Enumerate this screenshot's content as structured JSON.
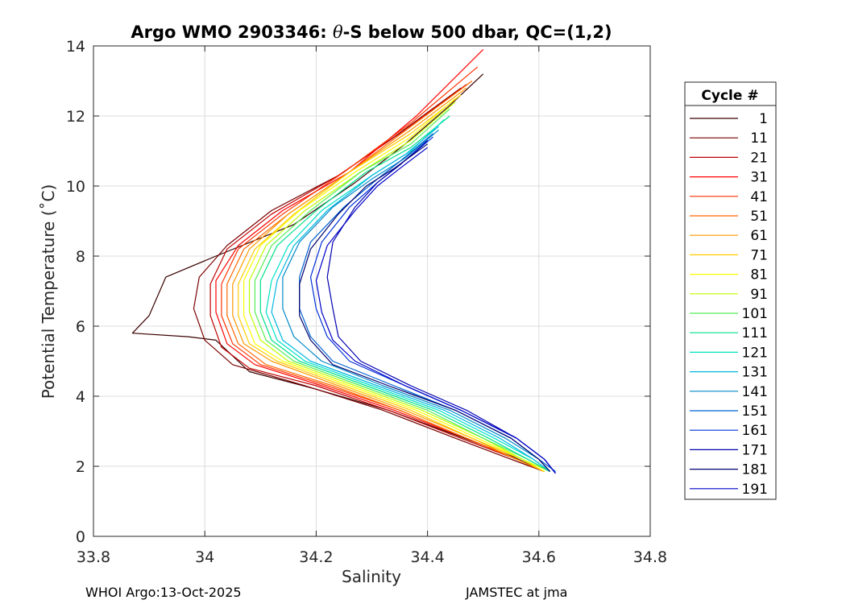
{
  "footer": {
    "left": "WHOI Argo:13-Oct-2025",
    "right": "JAMSTEC at jma"
  },
  "chart_data": {
    "type": "line",
    "title_prefix": "Argo WMO 2903346: ",
    "title_theta": "θ",
    "title_suffix": "-S below 500 dbar,  QC=(1,2)",
    "xlabel": "Salinity",
    "ylabel": "Potential Temperature (˚C)",
    "xlim": [
      33.8,
      34.8
    ],
    "ylim": [
      0,
      14
    ],
    "xticks": [
      33.8,
      34,
      34.2,
      34.4,
      34.6,
      34.8
    ],
    "xtick_labels": [
      "33.8",
      "34",
      "34.2",
      "34.4",
      "34.6",
      "34.8"
    ],
    "yticks": [
      0,
      2,
      4,
      6,
      8,
      10,
      12,
      14
    ],
    "ytick_labels": [
      "0",
      "2",
      "4",
      "6",
      "8",
      "10",
      "12",
      "14"
    ],
    "grid": true,
    "legend_title": "Cycle #",
    "legend_position": "right",
    "series": [
      {
        "name": "1",
        "color": "#3a0000",
        "points": [
          [
            34.5,
            13.2
          ],
          [
            34.44,
            12.3
          ],
          [
            34.36,
            11.2
          ],
          [
            34.27,
            10.1
          ],
          [
            34.16,
            8.9
          ],
          [
            34.02,
            8.0
          ],
          [
            33.93,
            7.4
          ],
          [
            33.9,
            6.3
          ],
          [
            33.87,
            5.8
          ],
          [
            33.97,
            5.7
          ],
          [
            34.02,
            5.6
          ],
          [
            34.08,
            4.7
          ],
          [
            34.2,
            4.2
          ],
          [
            34.33,
            3.6
          ],
          [
            34.45,
            2.9
          ],
          [
            34.55,
            2.3
          ],
          [
            34.61,
            1.85
          ]
        ]
      },
      {
        "name": "11",
        "color": "#7a0000",
        "points": [
          [
            34.46,
            12.8
          ],
          [
            34.34,
            11.4
          ],
          [
            34.24,
            10.3
          ],
          [
            34.12,
            9.3
          ],
          [
            34.04,
            8.3
          ],
          [
            33.99,
            7.4
          ],
          [
            33.98,
            6.5
          ],
          [
            34.0,
            5.6
          ],
          [
            34.05,
            4.9
          ],
          [
            34.18,
            4.3
          ],
          [
            34.32,
            3.6
          ],
          [
            34.45,
            2.8
          ],
          [
            34.55,
            2.2
          ],
          [
            34.61,
            1.85
          ]
        ]
      },
      {
        "name": "21",
        "color": "#c00000",
        "points": [
          [
            34.47,
            12.9
          ],
          [
            34.35,
            11.5
          ],
          [
            34.24,
            10.3
          ],
          [
            34.12,
            9.2
          ],
          [
            34.04,
            8.2
          ],
          [
            34.01,
            7.2
          ],
          [
            34.01,
            6.3
          ],
          [
            34.03,
            5.4
          ],
          [
            34.08,
            4.8
          ],
          [
            34.2,
            4.3
          ],
          [
            34.33,
            3.6
          ],
          [
            34.46,
            2.8
          ],
          [
            34.56,
            2.2
          ],
          [
            34.61,
            1.85
          ]
        ]
      },
      {
        "name": "31",
        "color": "#ff0000",
        "points": [
          [
            34.5,
            13.9
          ],
          [
            34.38,
            12.0
          ],
          [
            34.26,
            10.4
          ],
          [
            34.14,
            9.3
          ],
          [
            34.06,
            8.3
          ],
          [
            34.02,
            7.3
          ],
          [
            34.02,
            6.4
          ],
          [
            34.04,
            5.5
          ],
          [
            34.09,
            4.9
          ],
          [
            34.21,
            4.3
          ],
          [
            34.34,
            3.6
          ],
          [
            34.47,
            2.8
          ],
          [
            34.56,
            2.2
          ],
          [
            34.61,
            1.85
          ]
        ]
      },
      {
        "name": "41",
        "color": "#ff3300",
        "points": [
          [
            34.49,
            13.4
          ],
          [
            34.37,
            11.8
          ],
          [
            34.25,
            10.4
          ],
          [
            34.14,
            9.2
          ],
          [
            34.06,
            8.2
          ],
          [
            34.03,
            7.2
          ],
          [
            34.03,
            6.3
          ],
          [
            34.05,
            5.5
          ],
          [
            34.1,
            4.9
          ],
          [
            34.22,
            4.3
          ],
          [
            34.35,
            3.6
          ],
          [
            34.47,
            2.8
          ],
          [
            34.56,
            2.2
          ],
          [
            34.61,
            1.85
          ]
        ]
      },
      {
        "name": "51",
        "color": "#ff6600",
        "points": [
          [
            34.48,
            13.0
          ],
          [
            34.37,
            11.7
          ],
          [
            34.26,
            10.4
          ],
          [
            34.15,
            9.2
          ],
          [
            34.07,
            8.2
          ],
          [
            34.04,
            7.2
          ],
          [
            34.04,
            6.3
          ],
          [
            34.06,
            5.5
          ],
          [
            34.11,
            4.9
          ],
          [
            34.23,
            4.3
          ],
          [
            34.35,
            3.6
          ],
          [
            34.47,
            2.8
          ],
          [
            34.56,
            2.2
          ],
          [
            34.61,
            1.85
          ]
        ]
      },
      {
        "name": "61",
        "color": "#ff9900",
        "points": [
          [
            34.47,
            12.8
          ],
          [
            34.37,
            11.6
          ],
          [
            34.26,
            10.4
          ],
          [
            34.15,
            9.2
          ],
          [
            34.08,
            8.2
          ],
          [
            34.05,
            7.2
          ],
          [
            34.05,
            6.3
          ],
          [
            34.07,
            5.5
          ],
          [
            34.12,
            5.0
          ],
          [
            34.24,
            4.3
          ],
          [
            34.36,
            3.6
          ],
          [
            34.48,
            2.8
          ],
          [
            34.56,
            2.2
          ],
          [
            34.61,
            1.85
          ]
        ]
      },
      {
        "name": "71",
        "color": "#ffcc00",
        "points": [
          [
            34.46,
            12.6
          ],
          [
            34.37,
            11.5
          ],
          [
            34.26,
            10.4
          ],
          [
            34.16,
            9.2
          ],
          [
            34.09,
            8.2
          ],
          [
            34.06,
            7.2
          ],
          [
            34.06,
            6.3
          ],
          [
            34.08,
            5.5
          ],
          [
            34.13,
            5.0
          ],
          [
            34.25,
            4.3
          ],
          [
            34.37,
            3.6
          ],
          [
            34.48,
            2.8
          ],
          [
            34.57,
            2.2
          ],
          [
            34.61,
            1.85
          ]
        ]
      },
      {
        "name": "81",
        "color": "#ffff00",
        "points": [
          [
            34.45,
            12.5
          ],
          [
            34.37,
            11.4
          ],
          [
            34.27,
            10.4
          ],
          [
            34.17,
            9.3
          ],
          [
            34.1,
            8.3
          ],
          [
            34.07,
            7.3
          ],
          [
            34.07,
            6.3
          ],
          [
            34.09,
            5.5
          ],
          [
            34.14,
            5.0
          ],
          [
            34.26,
            4.3
          ],
          [
            34.38,
            3.6
          ],
          [
            34.49,
            2.8
          ],
          [
            34.57,
            2.2
          ],
          [
            34.61,
            1.85
          ]
        ]
      },
      {
        "name": "91",
        "color": "#bfff00",
        "points": [
          [
            34.45,
            12.4
          ],
          [
            34.37,
            11.3
          ],
          [
            34.28,
            10.4
          ],
          [
            34.18,
            9.3
          ],
          [
            34.11,
            8.3
          ],
          [
            34.08,
            7.3
          ],
          [
            34.08,
            6.4
          ],
          [
            34.1,
            5.6
          ],
          [
            34.15,
            5.0
          ],
          [
            34.27,
            4.3
          ],
          [
            34.39,
            3.6
          ],
          [
            34.5,
            2.8
          ],
          [
            34.57,
            2.2
          ],
          [
            34.62,
            1.85
          ]
        ]
      },
      {
        "name": "101",
        "color": "#55ee55",
        "points": [
          [
            34.44,
            12.2
          ],
          [
            34.37,
            11.2
          ],
          [
            34.28,
            10.4
          ],
          [
            34.19,
            9.3
          ],
          [
            34.12,
            8.3
          ],
          [
            34.09,
            7.3
          ],
          [
            34.09,
            6.4
          ],
          [
            34.11,
            5.6
          ],
          [
            34.16,
            5.0
          ],
          [
            34.28,
            4.3
          ],
          [
            34.4,
            3.6
          ],
          [
            34.5,
            2.8
          ],
          [
            34.58,
            2.2
          ],
          [
            34.62,
            1.85
          ]
        ]
      },
      {
        "name": "111",
        "color": "#00e08a",
        "points": [
          [
            34.44,
            12.0
          ],
          [
            34.37,
            11.1
          ],
          [
            34.29,
            10.4
          ],
          [
            34.2,
            9.3
          ],
          [
            34.13,
            8.3
          ],
          [
            34.1,
            7.3
          ],
          [
            34.1,
            6.4
          ],
          [
            34.12,
            5.6
          ],
          [
            34.17,
            5.0
          ],
          [
            34.29,
            4.3
          ],
          [
            34.41,
            3.6
          ],
          [
            34.51,
            2.8
          ],
          [
            34.58,
            2.2
          ],
          [
            34.62,
            1.85
          ]
        ]
      },
      {
        "name": "121",
        "color": "#00e0c8",
        "points": [
          [
            34.43,
            11.9
          ],
          [
            34.37,
            11.0
          ],
          [
            34.3,
            10.3
          ],
          [
            34.21,
            9.3
          ],
          [
            34.15,
            8.3
          ],
          [
            34.12,
            7.3
          ],
          [
            34.11,
            6.4
          ],
          [
            34.13,
            5.6
          ],
          [
            34.18,
            5.0
          ],
          [
            34.3,
            4.3
          ],
          [
            34.42,
            3.6
          ],
          [
            34.52,
            2.8
          ],
          [
            34.59,
            2.2
          ],
          [
            34.62,
            1.85
          ]
        ]
      },
      {
        "name": "131",
        "color": "#00b8e0",
        "points": [
          [
            34.42,
            11.7
          ],
          [
            34.36,
            10.9
          ],
          [
            34.3,
            10.3
          ],
          [
            34.22,
            9.3
          ],
          [
            34.16,
            8.3
          ],
          [
            34.13,
            7.3
          ],
          [
            34.12,
            6.4
          ],
          [
            34.14,
            5.6
          ],
          [
            34.19,
            5.0
          ],
          [
            34.31,
            4.3
          ],
          [
            34.43,
            3.6
          ],
          [
            34.53,
            2.8
          ],
          [
            34.59,
            2.2
          ],
          [
            34.62,
            1.85
          ]
        ]
      },
      {
        "name": "141",
        "color": "#0088c8",
        "points": [
          [
            34.42,
            11.6
          ],
          [
            34.36,
            10.8
          ],
          [
            34.3,
            10.2
          ],
          [
            34.23,
            9.4
          ],
          [
            34.17,
            8.4
          ],
          [
            34.14,
            7.4
          ],
          [
            34.14,
            6.5
          ],
          [
            34.16,
            5.7
          ],
          [
            34.21,
            5.0
          ],
          [
            34.32,
            4.3
          ],
          [
            34.44,
            3.6
          ],
          [
            34.54,
            2.8
          ],
          [
            34.6,
            2.2
          ],
          [
            34.62,
            1.85
          ]
        ]
      },
      {
        "name": "151",
        "color": "#0060d0",
        "points": [
          [
            34.41,
            11.5
          ],
          [
            34.35,
            10.7
          ],
          [
            34.31,
            10.2
          ],
          [
            34.25,
            9.4
          ],
          [
            34.19,
            8.4
          ],
          [
            34.17,
            7.4
          ],
          [
            34.17,
            6.5
          ],
          [
            34.19,
            5.7
          ],
          [
            34.23,
            5.0
          ],
          [
            34.34,
            4.3
          ],
          [
            34.45,
            3.6
          ],
          [
            34.55,
            2.8
          ],
          [
            34.6,
            2.2
          ],
          [
            34.63,
            1.85
          ]
        ]
      },
      {
        "name": "161",
        "color": "#0030d8",
        "points": [
          [
            34.41,
            11.4
          ],
          [
            34.35,
            10.6
          ],
          [
            34.31,
            10.1
          ],
          [
            34.26,
            9.4
          ],
          [
            34.21,
            8.4
          ],
          [
            34.19,
            7.4
          ],
          [
            34.2,
            6.5
          ],
          [
            34.22,
            5.7
          ],
          [
            34.26,
            5.0
          ],
          [
            34.36,
            4.3
          ],
          [
            34.46,
            3.6
          ],
          [
            34.56,
            2.8
          ],
          [
            34.61,
            2.2
          ],
          [
            34.63,
            1.8
          ]
        ]
      },
      {
        "name": "171",
        "color": "#0000b0",
        "points": [
          [
            34.4,
            11.3
          ],
          [
            34.35,
            10.6
          ],
          [
            34.31,
            10.1
          ],
          [
            34.27,
            9.4
          ],
          [
            34.23,
            8.4
          ],
          [
            34.22,
            7.4
          ],
          [
            34.23,
            6.5
          ],
          [
            34.24,
            5.7
          ],
          [
            34.28,
            5.0
          ],
          [
            34.37,
            4.3
          ],
          [
            34.47,
            3.6
          ],
          [
            34.56,
            2.8
          ],
          [
            34.61,
            2.2
          ],
          [
            34.63,
            1.8
          ]
        ]
      },
      {
        "name": "181",
        "color": "#000070",
        "points": [
          [
            34.4,
            11.2
          ],
          [
            34.34,
            10.5
          ],
          [
            34.29,
            10.0
          ],
          [
            34.24,
            9.2
          ],
          [
            34.19,
            8.2
          ],
          [
            34.17,
            7.2
          ],
          [
            34.17,
            6.3
          ],
          [
            34.19,
            5.6
          ],
          [
            34.23,
            4.9
          ],
          [
            34.33,
            4.3
          ],
          [
            34.45,
            3.6
          ],
          [
            34.55,
            2.8
          ],
          [
            34.6,
            2.2
          ],
          [
            34.62,
            1.85
          ]
        ]
      },
      {
        "name": "191",
        "color": "#0000c8",
        "points": [
          [
            34.4,
            11.1
          ],
          [
            34.35,
            10.5
          ],
          [
            34.31,
            10.0
          ],
          [
            34.27,
            9.3
          ],
          [
            34.22,
            8.3
          ],
          [
            34.2,
            7.3
          ],
          [
            34.21,
            6.4
          ],
          [
            34.23,
            5.6
          ],
          [
            34.27,
            5.0
          ],
          [
            34.36,
            4.3
          ],
          [
            34.46,
            3.6
          ],
          [
            34.56,
            2.8
          ],
          [
            34.61,
            2.2
          ],
          [
            34.63,
            1.8
          ]
        ]
      }
    ]
  }
}
